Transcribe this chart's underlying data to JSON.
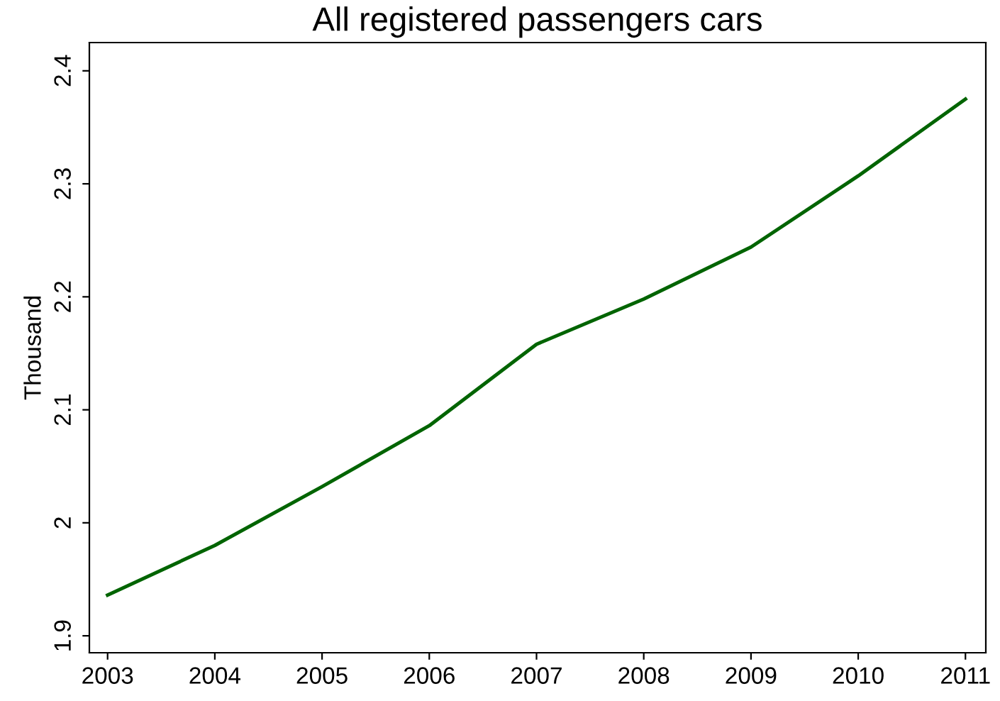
{
  "chart_data": {
    "type": "line",
    "title": "All registered passengers cars",
    "ylabel": "Thousand",
    "x": [
      2003,
      2004,
      2005,
      2006,
      2007,
      2008,
      2009,
      2010,
      2011
    ],
    "series": [
      {
        "color": "#006400",
        "values": [
          1.936,
          1.98,
          2.032,
          2.086,
          2.158,
          2.198,
          2.244,
          2.307,
          2.375
        ]
      }
    ],
    "xlim": [
      2002.83,
      2011.19
    ],
    "xticks": [
      2003,
      2004,
      2005,
      2006,
      2007,
      2008,
      2009,
      2010,
      2011
    ],
    "ylim": [
      1.885,
      2.425
    ],
    "yticks": [
      1.9,
      2,
      2.1,
      2.2,
      2.3,
      2.4
    ],
    "grid": false,
    "legend": false,
    "marker": "none",
    "line_style": "solid"
  }
}
